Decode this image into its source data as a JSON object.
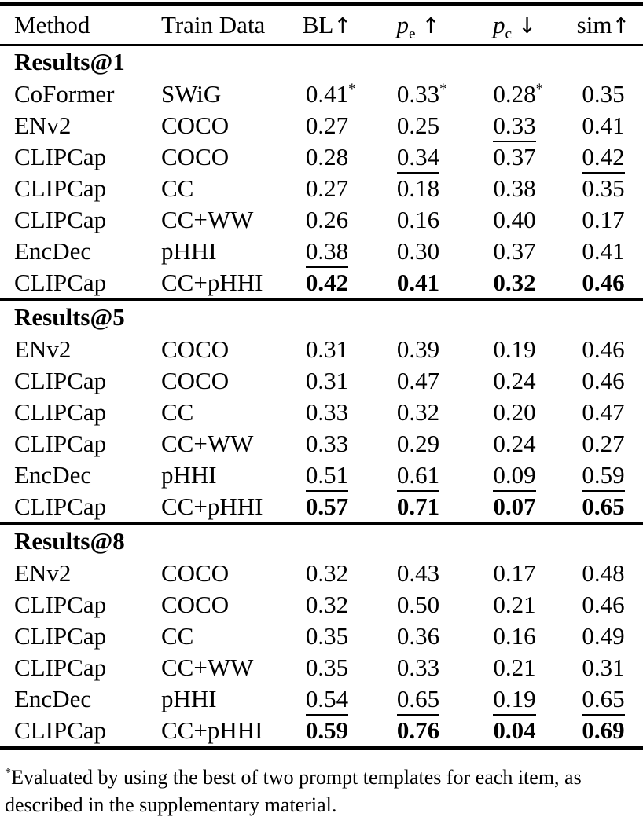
{
  "table": {
    "headers": {
      "method": "Method",
      "train_data": "Train Data",
      "bl": {
        "label": "BL",
        "arrow": "↑"
      },
      "pe": {
        "base": "p",
        "sub": "e",
        "arrow": "↑"
      },
      "pc": {
        "base": "p",
        "sub": "c",
        "arrow": "↓"
      },
      "sim": {
        "label": "sim",
        "arrow": "↑"
      }
    },
    "sections": [
      {
        "title": "Results@1",
        "rows": [
          {
            "method": "CoFormer",
            "train": "SWiG",
            "cells": [
              {
                "v": "0.41",
                "star": true
              },
              {
                "v": "0.33",
                "star": true
              },
              {
                "v": "0.28",
                "star": true
              },
              {
                "v": "0.35"
              }
            ]
          },
          {
            "method": "ENv2",
            "train": "COCO",
            "cells": [
              {
                "v": "0.27"
              },
              {
                "v": "0.25"
              },
              {
                "v": "0.33",
                "u": true
              },
              {
                "v": "0.41"
              }
            ]
          },
          {
            "method": "CLIPCap",
            "train": "COCO",
            "cells": [
              {
                "v": "0.28"
              },
              {
                "v": "0.34",
                "u": true
              },
              {
                "v": "0.37"
              },
              {
                "v": "0.42",
                "u": true
              }
            ]
          },
          {
            "method": "CLIPCap",
            "train": "CC",
            "cells": [
              {
                "v": "0.27"
              },
              {
                "v": "0.18"
              },
              {
                "v": "0.38"
              },
              {
                "v": "0.35"
              }
            ]
          },
          {
            "method": "CLIPCap",
            "train": "CC+WW",
            "cells": [
              {
                "v": "0.26"
              },
              {
                "v": "0.16"
              },
              {
                "v": "0.40"
              },
              {
                "v": "0.17"
              }
            ]
          },
          {
            "method": "EncDec",
            "train": "pHHI",
            "cells": [
              {
                "v": "0.38",
                "u": true
              },
              {
                "v": "0.30"
              },
              {
                "v": "0.37"
              },
              {
                "v": "0.41"
              }
            ]
          },
          {
            "method": "CLIPCap",
            "train": "CC+pHHI",
            "cells": [
              {
                "v": "0.42",
                "b": true
              },
              {
                "v": "0.41",
                "b": true
              },
              {
                "v": "0.32",
                "b": true
              },
              {
                "v": "0.46",
                "b": true
              }
            ]
          }
        ]
      },
      {
        "title": "Results@5",
        "rows": [
          {
            "method": "ENv2",
            "train": "COCO",
            "cells": [
              {
                "v": "0.31"
              },
              {
                "v": "0.39"
              },
              {
                "v": "0.19"
              },
              {
                "v": "0.46"
              }
            ]
          },
          {
            "method": "CLIPCap",
            "train": "COCO",
            "cells": [
              {
                "v": "0.31"
              },
              {
                "v": "0.47"
              },
              {
                "v": "0.24"
              },
              {
                "v": "0.46"
              }
            ]
          },
          {
            "method": "CLIPCap",
            "train": "CC",
            "cells": [
              {
                "v": "0.33"
              },
              {
                "v": "0.32"
              },
              {
                "v": "0.20"
              },
              {
                "v": "0.47"
              }
            ]
          },
          {
            "method": "CLIPCap",
            "train": "CC+WW",
            "cells": [
              {
                "v": "0.33"
              },
              {
                "v": "0.29"
              },
              {
                "v": "0.24"
              },
              {
                "v": "0.27"
              }
            ]
          },
          {
            "method": "EncDec",
            "train": "pHHI",
            "cells": [
              {
                "v": "0.51",
                "u": true
              },
              {
                "v": "0.61",
                "u": true
              },
              {
                "v": "0.09",
                "u": true
              },
              {
                "v": "0.59",
                "u": true
              }
            ]
          },
          {
            "method": "CLIPCap",
            "train": "CC+pHHI",
            "cells": [
              {
                "v": "0.57",
                "b": true
              },
              {
                "v": "0.71",
                "b": true
              },
              {
                "v": "0.07",
                "b": true
              },
              {
                "v": "0.65",
                "b": true
              }
            ]
          }
        ]
      },
      {
        "title": "Results@8",
        "rows": [
          {
            "method": "ENv2",
            "train": "COCO",
            "cells": [
              {
                "v": "0.32"
              },
              {
                "v": "0.43"
              },
              {
                "v": "0.17"
              },
              {
                "v": "0.48"
              }
            ]
          },
          {
            "method": "CLIPCap",
            "train": "COCO",
            "cells": [
              {
                "v": "0.32"
              },
              {
                "v": "0.50"
              },
              {
                "v": "0.21"
              },
              {
                "v": "0.46"
              }
            ]
          },
          {
            "method": "CLIPCap",
            "train": "CC",
            "cells": [
              {
                "v": "0.35"
              },
              {
                "v": "0.36"
              },
              {
                "v": "0.16"
              },
              {
                "v": "0.49"
              }
            ]
          },
          {
            "method": "CLIPCap",
            "train": "CC+WW",
            "cells": [
              {
                "v": "0.35"
              },
              {
                "v": "0.33"
              },
              {
                "v": "0.21"
              },
              {
                "v": "0.31"
              }
            ]
          },
          {
            "method": "EncDec",
            "train": "pHHI",
            "cells": [
              {
                "v": "0.54",
                "u": true
              },
              {
                "v": "0.65",
                "u": true
              },
              {
                "v": "0.19",
                "u": true
              },
              {
                "v": "0.65",
                "u": true
              }
            ]
          },
          {
            "method": "CLIPCap",
            "train": "CC+pHHI",
            "cells": [
              {
                "v": "0.59",
                "b": true
              },
              {
                "v": "0.76",
                "b": true
              },
              {
                "v": "0.04",
                "b": true
              },
              {
                "v": "0.69",
                "b": true
              }
            ]
          }
        ]
      }
    ],
    "star_symbol": "*"
  },
  "footnote": {
    "marker": "*",
    "line1": "Evaluated by using the best of two prompt templates for each item, as",
    "line2": "described in the supplementary material."
  }
}
